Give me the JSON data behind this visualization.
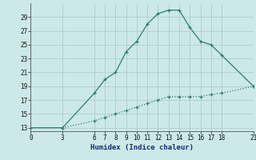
{
  "xlabel": "Humidex (Indice chaleur)",
  "bg_color": "#cce8e8",
  "grid_color": "#b0cccc",
  "line_color": "#2e7d6e",
  "line1_x": [
    0,
    3,
    6,
    7,
    8,
    9,
    10,
    11,
    12,
    13,
    14,
    15,
    16,
    17,
    18,
    21
  ],
  "line1_y": [
    13,
    13,
    18,
    20,
    21,
    24,
    25.5,
    28,
    29.5,
    30,
    30,
    27.5,
    25.5,
    25,
    23.5,
    19
  ],
  "line2_x": [
    3,
    6,
    7,
    8,
    9,
    10,
    11,
    12,
    13,
    14,
    15,
    16,
    17,
    18,
    21
  ],
  "line2_y": [
    13,
    14,
    14.5,
    15,
    15.5,
    16,
    16.5,
    17,
    17.5,
    17.5,
    17.5,
    17.5,
    17.8,
    18,
    19
  ],
  "yticks": [
    13,
    15,
    17,
    19,
    21,
    23,
    25,
    27,
    29
  ],
  "xticks": [
    0,
    3,
    6,
    7,
    8,
    9,
    10,
    11,
    12,
    13,
    14,
    15,
    16,
    17,
    18,
    21
  ],
  "xlim": [
    0,
    21
  ],
  "ylim": [
    12.5,
    31
  ]
}
